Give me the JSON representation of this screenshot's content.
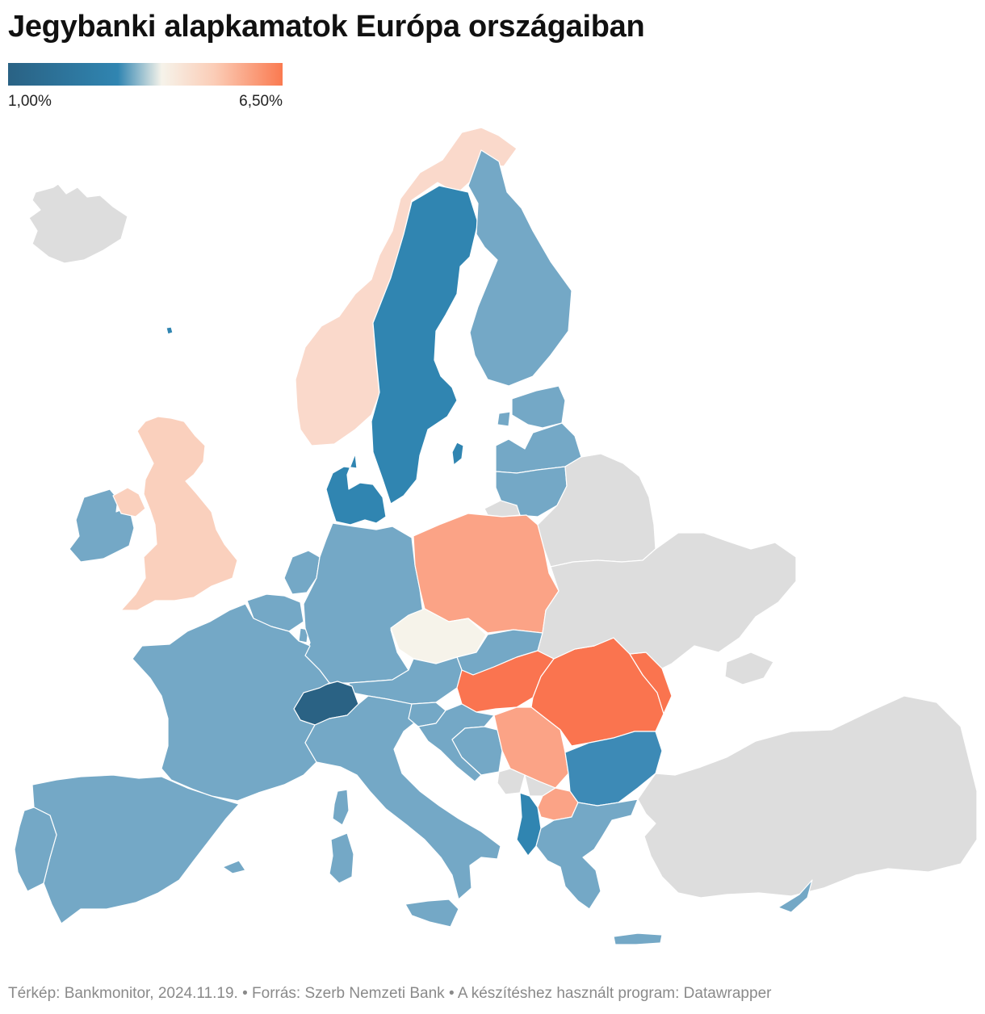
{
  "title": "Jegybanki alapkamatok Európa országaiban",
  "legend": {
    "min_label": "1,00%",
    "max_label": "6,50%",
    "colors": [
      "#2a6284",
      "#3085b1",
      "#f6f3ea",
      "#fbcdb7",
      "#fa7a50"
    ]
  },
  "no_data_color": "#dddddd",
  "footer": "Térkép: Bankmonitor, 2024.11.19. • Forrás: Szerb Nemzeti Bank • A készítéshez használt program: Datawrapper",
  "countries": [
    {
      "id": "iceland",
      "color": "#dddddd"
    },
    {
      "id": "norway",
      "color": "#fad9cb"
    },
    {
      "id": "sweden",
      "color": "#3085b1"
    },
    {
      "id": "finland",
      "color": "#74a8c6"
    },
    {
      "id": "estonia",
      "color": "#74a8c6"
    },
    {
      "id": "latvia",
      "color": "#74a8c6"
    },
    {
      "id": "lithuania",
      "color": "#74a8c6"
    },
    {
      "id": "denmark",
      "color": "#3085b1"
    },
    {
      "id": "united-kingdom",
      "color": "#fad0bd"
    },
    {
      "id": "ireland",
      "color": "#74a8c6"
    },
    {
      "id": "netherlands",
      "color": "#74a8c6"
    },
    {
      "id": "belgium",
      "color": "#74a8c6"
    },
    {
      "id": "luxembourg",
      "color": "#74a8c6"
    },
    {
      "id": "germany",
      "color": "#74a8c6"
    },
    {
      "id": "poland",
      "color": "#fba386"
    },
    {
      "id": "czechia",
      "color": "#f6f3ea"
    },
    {
      "id": "slovakia",
      "color": "#74a8c6"
    },
    {
      "id": "austria",
      "color": "#74a8c6"
    },
    {
      "id": "hungary",
      "color": "#fa7450"
    },
    {
      "id": "romania",
      "color": "#fa744f"
    },
    {
      "id": "moldova",
      "color": "#fa744f"
    },
    {
      "id": "switzerland",
      "color": "#2a6284"
    },
    {
      "id": "france",
      "color": "#74a8c6"
    },
    {
      "id": "spain",
      "color": "#74a8c6"
    },
    {
      "id": "portugal",
      "color": "#74a8c6"
    },
    {
      "id": "italy",
      "color": "#74a8c6"
    },
    {
      "id": "slovenia",
      "color": "#74a8c6"
    },
    {
      "id": "croatia",
      "color": "#74a8c6"
    },
    {
      "id": "bosnia",
      "color": "#74a8c6"
    },
    {
      "id": "serbia",
      "color": "#fba386"
    },
    {
      "id": "montenegro",
      "color": "#dddddd"
    },
    {
      "id": "kosovo",
      "color": "#dddddd"
    },
    {
      "id": "albania",
      "color": "#3085b1"
    },
    {
      "id": "north-macedonia",
      "color": "#fba386"
    },
    {
      "id": "bulgaria",
      "color": "#3d8ab6"
    },
    {
      "id": "greece",
      "color": "#74a8c6"
    },
    {
      "id": "turkey",
      "color": "#dddddd"
    },
    {
      "id": "belarus",
      "color": "#dddddd"
    },
    {
      "id": "ukraine",
      "color": "#dddddd"
    },
    {
      "id": "russia-kaliningrad",
      "color": "#dddddd"
    },
    {
      "id": "cyprus",
      "color": "#74a8c6"
    },
    {
      "id": "corsica",
      "color": "#74a8c6"
    },
    {
      "id": "sardinia",
      "color": "#74a8c6"
    },
    {
      "id": "sicily",
      "color": "#74a8c6"
    },
    {
      "id": "faroe-islands",
      "color": "#3085b1"
    },
    {
      "id": "crete",
      "color": "#74a8c6"
    },
    {
      "id": "gotland",
      "color": "#3085b1"
    },
    {
      "id": "baleares",
      "color": "#74a8c6"
    },
    {
      "id": "saaremaa",
      "color": "#74a8c6"
    }
  ]
}
